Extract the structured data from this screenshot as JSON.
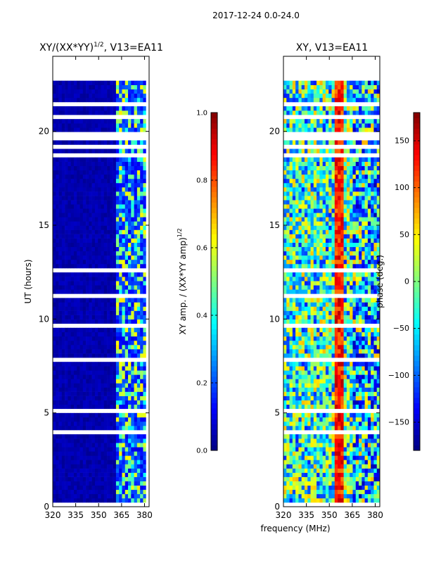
{
  "suptitle": "2017-12-24 0.0-24.0",
  "shared_xlabel": "frequency (MHz)",
  "chart_data": [
    {
      "type": "heatmap",
      "title": "XY/(XX*YY)",
      "title_sup": "1/2",
      "title_tail": ", V13=EA11",
      "xlabel": "",
      "ylabel": "UT (hours)",
      "xlim": [
        320,
        383
      ],
      "ylim": [
        0,
        24
      ],
      "xticks": [
        "320",
        "335",
        "350",
        "365",
        "380"
      ],
      "xtick_values": [
        320,
        335,
        350,
        365,
        380
      ],
      "yticks": [
        "0",
        "5",
        "10",
        "15",
        "20"
      ],
      "ytick_values": [
        0,
        5,
        10,
        15,
        20
      ],
      "data_extent_hours": [
        0,
        22.7
      ],
      "colorbar": {
        "label": "XY amp. / (XX*YY amp)",
        "label_sup": "1/2",
        "range": [
          0.0,
          1.0
        ],
        "ticks": [
          "0.0",
          "0.2",
          "0.4",
          "0.6",
          "0.8",
          "1.0"
        ],
        "tick_values": [
          0.0,
          0.2,
          0.4,
          0.6,
          0.8,
          1.0
        ],
        "colormap": "jet"
      }
    },
    {
      "type": "heatmap",
      "title": "XY, V13=EA11",
      "xlabel": "frequency (MHz)",
      "ylabel": "",
      "xlim": [
        320,
        383
      ],
      "ylim": [
        0,
        24
      ],
      "xticks": [
        "320",
        "335",
        "350",
        "365",
        "380"
      ],
      "xtick_values": [
        320,
        335,
        350,
        365,
        380
      ],
      "yticks": [
        "0",
        "5",
        "10",
        "15",
        "20"
      ],
      "ytick_values": [
        0,
        5,
        10,
        15,
        20
      ],
      "data_extent_hours": [
        0,
        22.7
      ],
      "colorbar": {
        "label": "phase (deg.)",
        "range": [
          -180,
          180
        ],
        "ticks": [
          "−150",
          "−100",
          "−50",
          "0",
          "50",
          "100",
          "150"
        ],
        "tick_values": [
          -150,
          -100,
          -50,
          0,
          50,
          100,
          150
        ],
        "colormap": "jet"
      }
    }
  ]
}
